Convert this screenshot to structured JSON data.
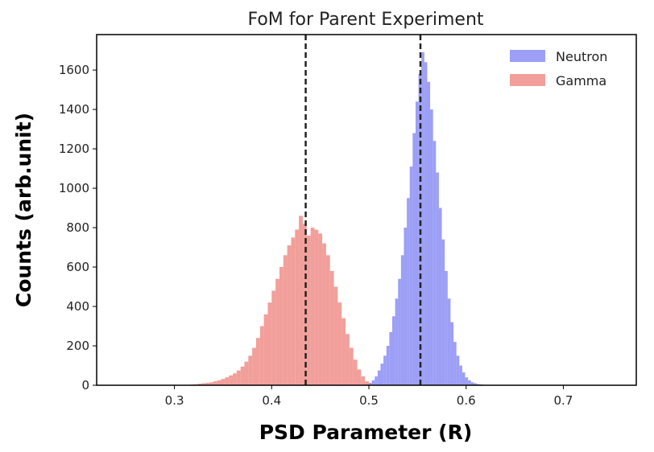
{
  "chart_data": {
    "type": "histogram",
    "title": "FoM for Parent Experiment",
    "xlabel": "PSD Parameter (R)",
    "ylabel": "Counts (arb.unit)",
    "xlim": [
      0.22,
      0.775
    ],
    "ylim": [
      0,
      1780
    ],
    "x_ticks": [
      0.3,
      0.4,
      0.5,
      0.6,
      0.7
    ],
    "x_tick_labels": [
      "0.3",
      "0.4",
      "0.5",
      "0.6",
      "0.7"
    ],
    "y_ticks": [
      0,
      200,
      400,
      600,
      800,
      1000,
      1200,
      1400,
      1600
    ],
    "y_tick_labels": [
      "0",
      "200",
      "400",
      "600",
      "800",
      "1000",
      "1200",
      "1400",
      "1600"
    ],
    "grid": false,
    "legend_position": "top-right",
    "series": [
      {
        "name": "Neutron",
        "color": "#7b7ff2",
        "opacity": 0.75,
        "bin_width": 0.003,
        "bins": [
          [
            0.497,
            5
          ],
          [
            0.5,
            12
          ],
          [
            0.503,
            25
          ],
          [
            0.506,
            45
          ],
          [
            0.509,
            75
          ],
          [
            0.512,
            110
          ],
          [
            0.515,
            150
          ],
          [
            0.518,
            200
          ],
          [
            0.521,
            270
          ],
          [
            0.524,
            350
          ],
          [
            0.527,
            440
          ],
          [
            0.53,
            540
          ],
          [
            0.533,
            660
          ],
          [
            0.536,
            800
          ],
          [
            0.539,
            950
          ],
          [
            0.542,
            1110
          ],
          [
            0.545,
            1280
          ],
          [
            0.548,
            1440
          ],
          [
            0.551,
            1580
          ],
          [
            0.554,
            1690
          ],
          [
            0.557,
            1640
          ],
          [
            0.56,
            1540
          ],
          [
            0.563,
            1400
          ],
          [
            0.566,
            1240
          ],
          [
            0.569,
            1080
          ],
          [
            0.572,
            900
          ],
          [
            0.575,
            740
          ],
          [
            0.578,
            580
          ],
          [
            0.581,
            440
          ],
          [
            0.584,
            320
          ],
          [
            0.587,
            220
          ],
          [
            0.59,
            150
          ],
          [
            0.593,
            100
          ],
          [
            0.596,
            65
          ],
          [
            0.599,
            40
          ],
          [
            0.602,
            25
          ],
          [
            0.605,
            15
          ],
          [
            0.608,
            10
          ],
          [
            0.611,
            6
          ],
          [
            0.614,
            4
          ],
          [
            0.617,
            2
          ],
          [
            0.62,
            1
          ]
        ]
      },
      {
        "name": "Gamma",
        "color": "#ee7f7a",
        "opacity": 0.75,
        "bin_width": 0.004,
        "bins": [
          [
            0.316,
            3
          ],
          [
            0.32,
            5
          ],
          [
            0.324,
            8
          ],
          [
            0.328,
            10
          ],
          [
            0.332,
            12
          ],
          [
            0.336,
            15
          ],
          [
            0.34,
            20
          ],
          [
            0.344,
            25
          ],
          [
            0.348,
            32
          ],
          [
            0.352,
            40
          ],
          [
            0.356,
            50
          ],
          [
            0.36,
            60
          ],
          [
            0.364,
            75
          ],
          [
            0.368,
            95
          ],
          [
            0.372,
            120
          ],
          [
            0.376,
            150
          ],
          [
            0.38,
            190
          ],
          [
            0.384,
            240
          ],
          [
            0.388,
            300
          ],
          [
            0.392,
            360
          ],
          [
            0.396,
            420
          ],
          [
            0.4,
            480
          ],
          [
            0.404,
            540
          ],
          [
            0.408,
            600
          ],
          [
            0.412,
            660
          ],
          [
            0.416,
            710
          ],
          [
            0.42,
            750
          ],
          [
            0.424,
            790
          ],
          [
            0.428,
            860
          ],
          [
            0.432,
            820
          ],
          [
            0.436,
            760
          ],
          [
            0.44,
            800
          ],
          [
            0.444,
            790
          ],
          [
            0.448,
            770
          ],
          [
            0.452,
            720
          ],
          [
            0.456,
            660
          ],
          [
            0.46,
            580
          ],
          [
            0.464,
            500
          ],
          [
            0.468,
            420
          ],
          [
            0.472,
            340
          ],
          [
            0.476,
            260
          ],
          [
            0.48,
            190
          ],
          [
            0.484,
            130
          ],
          [
            0.488,
            80
          ],
          [
            0.492,
            45
          ],
          [
            0.496,
            20
          ]
        ]
      }
    ],
    "annotations": [
      {
        "type": "vline",
        "x": 0.435,
        "style": "dashed",
        "color": "#222222"
      },
      {
        "type": "vline",
        "x": 0.553,
        "style": "dashed",
        "color": "#222222"
      }
    ]
  }
}
